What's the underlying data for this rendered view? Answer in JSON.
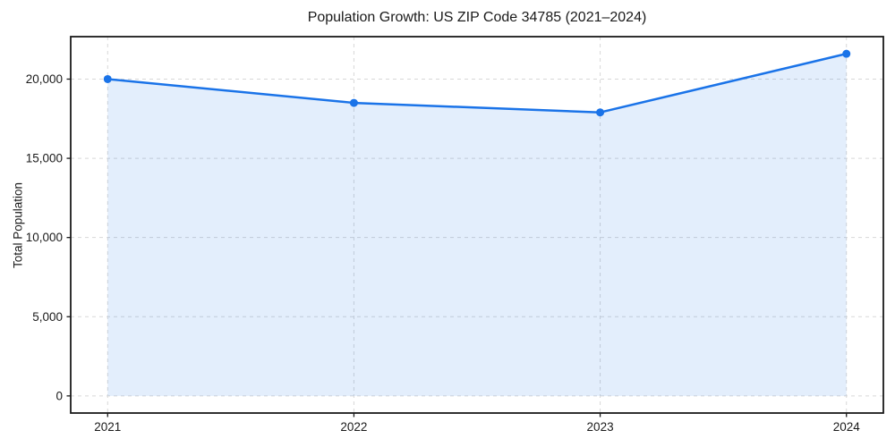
{
  "chart_data": {
    "type": "line",
    "subtype": "area-filled-line-with-markers",
    "title": "Population Growth: US ZIP Code 34785 (2021–2024)",
    "xlabel": "",
    "ylabel": "Total Population",
    "categories": [
      "2021",
      "2022",
      "2023",
      "2024"
    ],
    "x": [
      2021,
      2022,
      2023,
      2024
    ],
    "series": [
      {
        "name": "Total Population",
        "values": [
          20000,
          18500,
          17900,
          21600
        ]
      }
    ],
    "yticks": [
      0,
      5000,
      10000,
      15000,
      20000
    ],
    "ytick_labels": [
      "0",
      "5,000",
      "10,000",
      "15,000",
      "20,000"
    ],
    "xlim": [
      2020.85,
      2024.15
    ],
    "ylim": [
      -1080,
      22680
    ],
    "fill_to_baseline": 0,
    "grid": true,
    "grid_style": "dashed",
    "legend_position": "none",
    "colors": {
      "line": "#1a73e8",
      "marker": "#1a73e8",
      "fill": "rgba(26,115,232,0.12)",
      "grid": "#d7d7d7",
      "spine": "#1a1a1a",
      "text": "#1a1a1a",
      "background": "#ffffff"
    }
  }
}
